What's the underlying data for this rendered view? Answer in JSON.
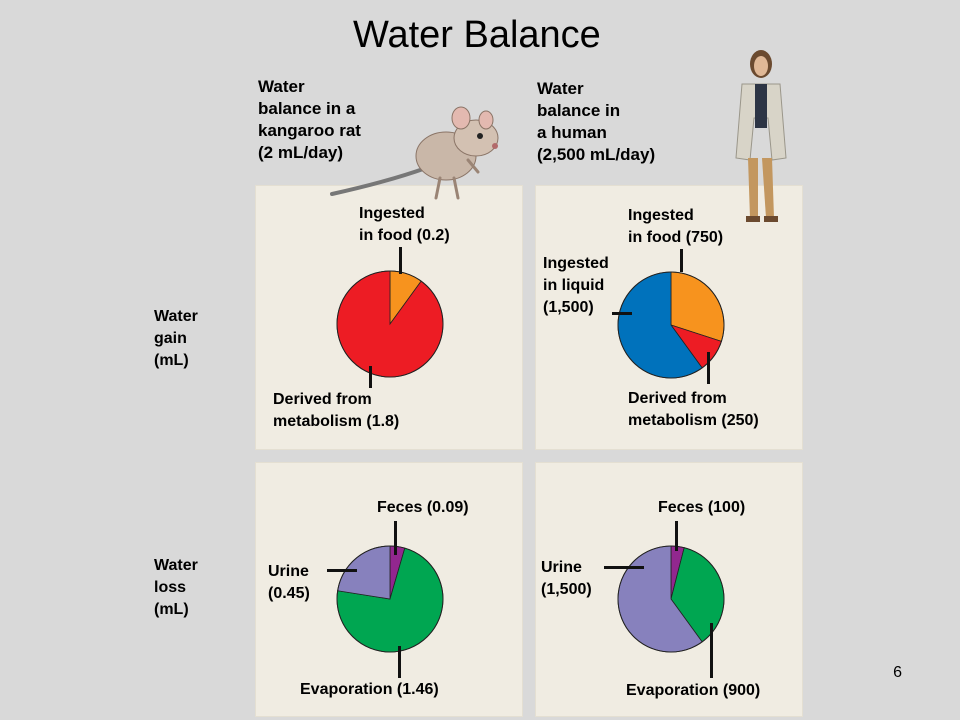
{
  "title": "Water Balance",
  "headers": {
    "rat": "Water\nbalance in a\nkangaroo rat\n(2 mL/day)",
    "human": "Water\nbalance in\na human\n(2,500 mL/day)"
  },
  "rows": {
    "gain": "Water\ngain\n(mL)",
    "loss": "Water\nloss\n(mL)"
  },
  "labels": {
    "rat_gain_food": "Ingested\nin food (0.2)",
    "rat_gain_metab": "Derived from\nmetabolism (1.8)",
    "human_gain_food": "Ingested\nin food (750)",
    "human_gain_liquid": "Ingested\nin liquid\n(1,500)",
    "human_gain_metab": "Derived from\nmetabolism (250)",
    "rat_loss_feces": "Feces (0.09)",
    "rat_loss_urine": "Urine\n(0.45)",
    "rat_loss_evap": "Evaporation (1.46)",
    "human_loss_feces": "Feces (100)",
    "human_loss_urine": "Urine\n(1,500)",
    "human_loss_evap": "Evaporation (900)"
  },
  "page_number": "6",
  "colors": {
    "food": "#f7931e",
    "metabolism": "#ed1c24",
    "liquid": "#0072bc",
    "feces": "#92278f",
    "urine": "#8781bd",
    "evaporation": "#00a651",
    "panel": "#f0ece2",
    "background": "#d9d9d9"
  },
  "chart_data": [
    {
      "type": "pie",
      "name": "Kangaroo rat water gain",
      "slices": [
        {
          "label": "Ingested in food",
          "value": 0.2,
          "color": "#f7931e"
        },
        {
          "label": "Derived from metabolism",
          "value": 1.8,
          "color": "#ed1c24"
        }
      ]
    },
    {
      "type": "pie",
      "name": "Human water gain",
      "slices": [
        {
          "label": "Ingested in food",
          "value": 750,
          "color": "#f7931e"
        },
        {
          "label": "Derived from metabolism",
          "value": 250,
          "color": "#ed1c24"
        },
        {
          "label": "Ingested in liquid",
          "value": 1500,
          "color": "#0072bc"
        }
      ]
    },
    {
      "type": "pie",
      "name": "Kangaroo rat water loss",
      "slices": [
        {
          "label": "Feces",
          "value": 0.09,
          "color": "#92278f"
        },
        {
          "label": "Evaporation",
          "value": 1.46,
          "color": "#00a651"
        },
        {
          "label": "Urine",
          "value": 0.45,
          "color": "#8781bd"
        }
      ]
    },
    {
      "type": "pie",
      "name": "Human water loss",
      "slices": [
        {
          "label": "Feces",
          "value": 100,
          "color": "#92278f"
        },
        {
          "label": "Evaporation",
          "value": 900,
          "color": "#00a651"
        },
        {
          "label": "Urine",
          "value": 1500,
          "color": "#8781bd"
        }
      ]
    }
  ]
}
